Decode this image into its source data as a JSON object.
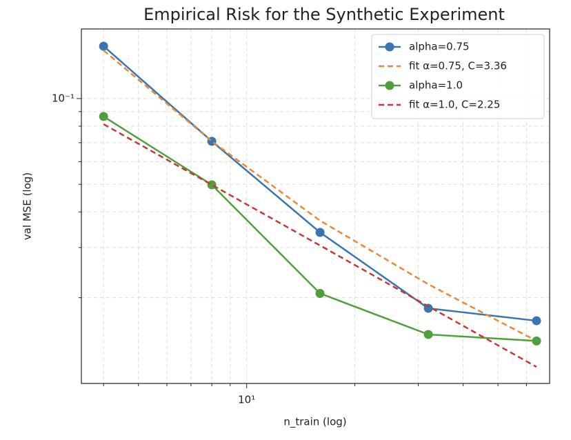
{
  "chart_data": {
    "type": "line",
    "title": "Empirical Risk for the Synthetic Experiment",
    "x_label": "n_train (log)",
    "y_label": "val MSE (log)",
    "x": [
      4,
      8,
      16,
      32,
      64
    ],
    "series": [
      {
        "name": "alpha=0.75",
        "color": "#3b75af",
        "style": "solid",
        "marker": true,
        "values": [
          0.1527,
          0.0708,
          0.0339,
          0.01836,
          0.0166
        ]
      },
      {
        "name": "fit α=0.75, C=3.36",
        "color": "#ef8636",
        "style": "dashed",
        "marker": false,
        "values": [
          0.1476,
          0.0708,
          0.0373,
          0.0223,
          0.0141
        ]
      },
      {
        "name": "alpha=1.0",
        "color": "#519e3e",
        "style": "solid",
        "marker": true,
        "values": [
          0.0865,
          0.0498,
          0.0207,
          0.01486,
          0.0141
        ]
      },
      {
        "name": "fit α=1.0, C=2.25",
        "color": "#c53932",
        "style": "dashed",
        "marker": false,
        "values": [
          0.0813,
          0.0498,
          0.0305,
          0.01866,
          0.01143
        ]
      }
    ],
    "xlim": [
      3.47,
      69.6
    ],
    "ylim": [
      0.01,
      0.1755
    ],
    "xticks": [
      {
        "value": 10,
        "label": "10¹"
      }
    ],
    "yticks": [
      {
        "value": 0.1,
        "label": "10⁻¹"
      }
    ],
    "xminorticks": [
      4,
      5,
      6,
      7,
      8,
      9,
      20,
      30,
      40,
      50,
      60
    ],
    "yminorticks": [
      0.02,
      0.03,
      0.04,
      0.05,
      0.06,
      0.07,
      0.08,
      0.09
    ],
    "log_x": true,
    "log_y": true,
    "grid": true,
    "legend": "upper right"
  }
}
